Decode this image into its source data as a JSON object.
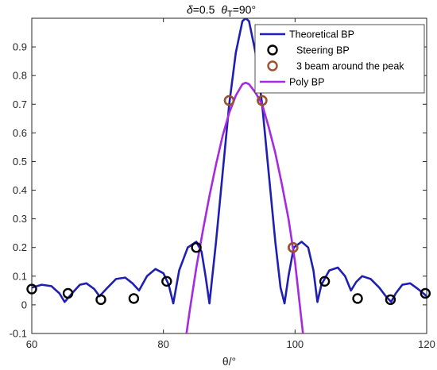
{
  "chart_data": {
    "type": "line",
    "title": {
      "delta_symbol": "δ",
      "delta_value": "=0.5",
      "theta_symbol": "θ",
      "theta_subscript": "T",
      "theta_value": "=90°"
    },
    "xlabel": "θ/°",
    "ylabel": "",
    "xlim": [
      60,
      120
    ],
    "ylim": [
      -0.1,
      1.0
    ],
    "xticks": [
      "60",
      "80",
      "100",
      "120"
    ],
    "xtick_values": [
      60,
      80,
      100,
      120
    ],
    "yticks": [
      "-0.1",
      "0",
      "0.1",
      "0.2",
      "0.3",
      "0.4",
      "0.5",
      "0.6",
      "0.7",
      "0.8",
      "0.9"
    ],
    "ytick_values": [
      -0.1,
      0,
      0.1,
      0.2,
      0.3,
      0.4,
      0.5,
      0.6,
      0.7,
      0.8,
      0.9
    ],
    "legend_position": "top-right",
    "colors": {
      "theoretical": "#1f1fb4",
      "steering": "#000000",
      "peak": "#a0522d",
      "poly": "#a52ae0"
    },
    "series": [
      {
        "name": "Theoretical BP",
        "style": "line",
        "x": [
          60,
          61.5,
          63,
          64.2,
          65,
          66.3,
          67.3,
          68.3,
          69.5,
          70.3,
          71.5,
          72.8,
          74.2,
          75.3,
          76.3,
          77.5,
          78.8,
          80,
          80.8,
          81.5,
          82.4,
          83.7,
          85,
          85.8,
          86.4,
          87,
          88,
          89,
          90,
          91,
          92,
          92.5,
          93,
          94,
          95,
          96,
          97,
          97.8,
          98.4,
          99,
          99.8,
          101,
          102,
          102.8,
          103.4,
          104,
          105.2,
          106.5,
          107.6,
          108.5,
          109.3,
          110.2,
          111.5,
          112.8,
          113.8,
          114.6,
          115.3,
          116.3,
          117.5,
          118.7,
          119.5,
          120
        ],
        "y": [
          0.06,
          0.07,
          0.065,
          0.04,
          0.01,
          0.045,
          0.07,
          0.075,
          0.055,
          0.03,
          0.06,
          0.09,
          0.095,
          0.075,
          0.05,
          0.1,
          0.125,
          0.11,
          0.07,
          0.005,
          0.12,
          0.2,
          0.22,
          0.185,
          0.1,
          0.005,
          0.22,
          0.46,
          0.7,
          0.88,
          0.99,
          1.0,
          0.99,
          0.88,
          0.7,
          0.46,
          0.22,
          0.06,
          0.005,
          0.1,
          0.2,
          0.22,
          0.2,
          0.12,
          0.01,
          0.07,
          0.12,
          0.13,
          0.1,
          0.05,
          0.08,
          0.1,
          0.09,
          0.06,
          0.03,
          0.01,
          0.04,
          0.07,
          0.075,
          0.055,
          0.04,
          0.03
        ]
      },
      {
        "name": "Steering BP",
        "style": "marker",
        "x": [
          60,
          65.5,
          70.5,
          75.5,
          80.5,
          85,
          90,
          95,
          99.7,
          104.5,
          109.5,
          114.5,
          119.8
        ],
        "y": [
          0.055,
          0.04,
          0.018,
          0.022,
          0.082,
          0.2,
          0.713,
          0.713,
          0.2,
          0.082,
          0.022,
          0.018,
          0.04
        ]
      },
      {
        "name": "3 beam around the peak",
        "style": "marker",
        "x": [
          90,
          95,
          99.7
        ],
        "y": [
          0.713,
          0.713,
          0.2
        ]
      },
      {
        "name": "Poly BP",
        "style": "line",
        "x": [
          83.5,
          84,
          85,
          86,
          87,
          88,
          89,
          90,
          91,
          92,
          92.5,
          93,
          94,
          95,
          96,
          97,
          98,
          99,
          100,
          101.2
        ],
        "y": [
          -0.1,
          -0.02,
          0.13,
          0.26,
          0.38,
          0.49,
          0.59,
          0.67,
          0.73,
          0.77,
          0.775,
          0.77,
          0.74,
          0.7,
          0.62,
          0.53,
          0.42,
          0.3,
          0.15,
          -0.1
        ]
      }
    ]
  }
}
